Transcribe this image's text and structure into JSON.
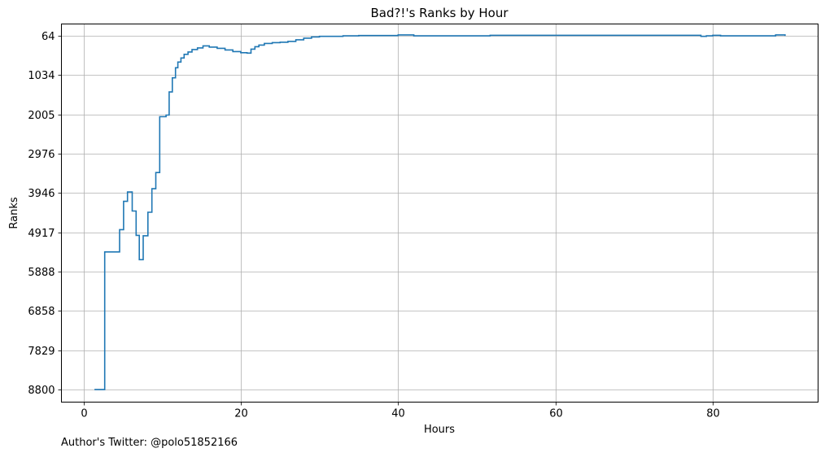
{
  "chart_data": {
    "type": "line",
    "line_style": "step",
    "title": "Bad?!'s Ranks by Hour",
    "xlabel": "Hours",
    "ylabel": "Ranks",
    "xlim": [
      -2.8,
      93.4
    ],
    "ylim": [
      9110,
      -230
    ],
    "y_inverted": true,
    "grid": true,
    "x_ticks": [
      0,
      20,
      40,
      60,
      80
    ],
    "y_ticks": [
      64,
      1034,
      2005,
      2976,
      3946,
      4917,
      5888,
      6858,
      7829,
      8800
    ],
    "color": "#1f77b4",
    "series": [
      {
        "x": [
          1.4,
          2.7,
          4.3,
          4.6,
          5.1,
          5.6,
          6.2,
          6.7,
          7.1,
          7.6,
          8.2,
          8.7,
          9.2,
          9.7,
          10.5,
          10.9,
          11.3,
          11.7,
          12.0,
          12.4,
          12.8,
          13.3,
          13.8,
          14.5,
          15.2,
          16.0,
          17.0,
          18.0,
          19.0,
          20.0,
          20.8,
          21.3,
          21.8,
          22.3,
          23.0,
          24.0,
          25.0,
          26.0,
          27.0,
          28.0,
          29.0,
          30.0,
          31.5,
          33.0,
          35.0,
          38.0,
          40.0,
          42.0,
          50.0,
          51.7,
          60.0,
          70.0,
          76.5,
          78.5,
          79.2,
          80.0,
          81.0,
          85.0,
          88.0,
          89.2
        ],
        "y": [
          8800,
          5400,
          5400,
          4850,
          4150,
          3920,
          4390,
          4990,
          5590,
          5000,
          4420,
          3840,
          3440,
          2060,
          2020,
          1450,
          1100,
          850,
          710,
          610,
          520,
          460,
          400,
          360,
          310,
          340,
          370,
          410,
          450,
          480,
          490,
          390,
          330,
          290,
          250,
          230,
          220,
          200,
          160,
          120,
          90,
          75,
          75,
          64,
          55,
          55,
          40,
          64,
          64,
          50,
          50,
          50,
          50,
          75,
          64,
          50,
          64,
          64,
          40,
          64
        ]
      }
    ]
  },
  "footer": {
    "credit": "Author's Twitter: @polo51852166"
  }
}
